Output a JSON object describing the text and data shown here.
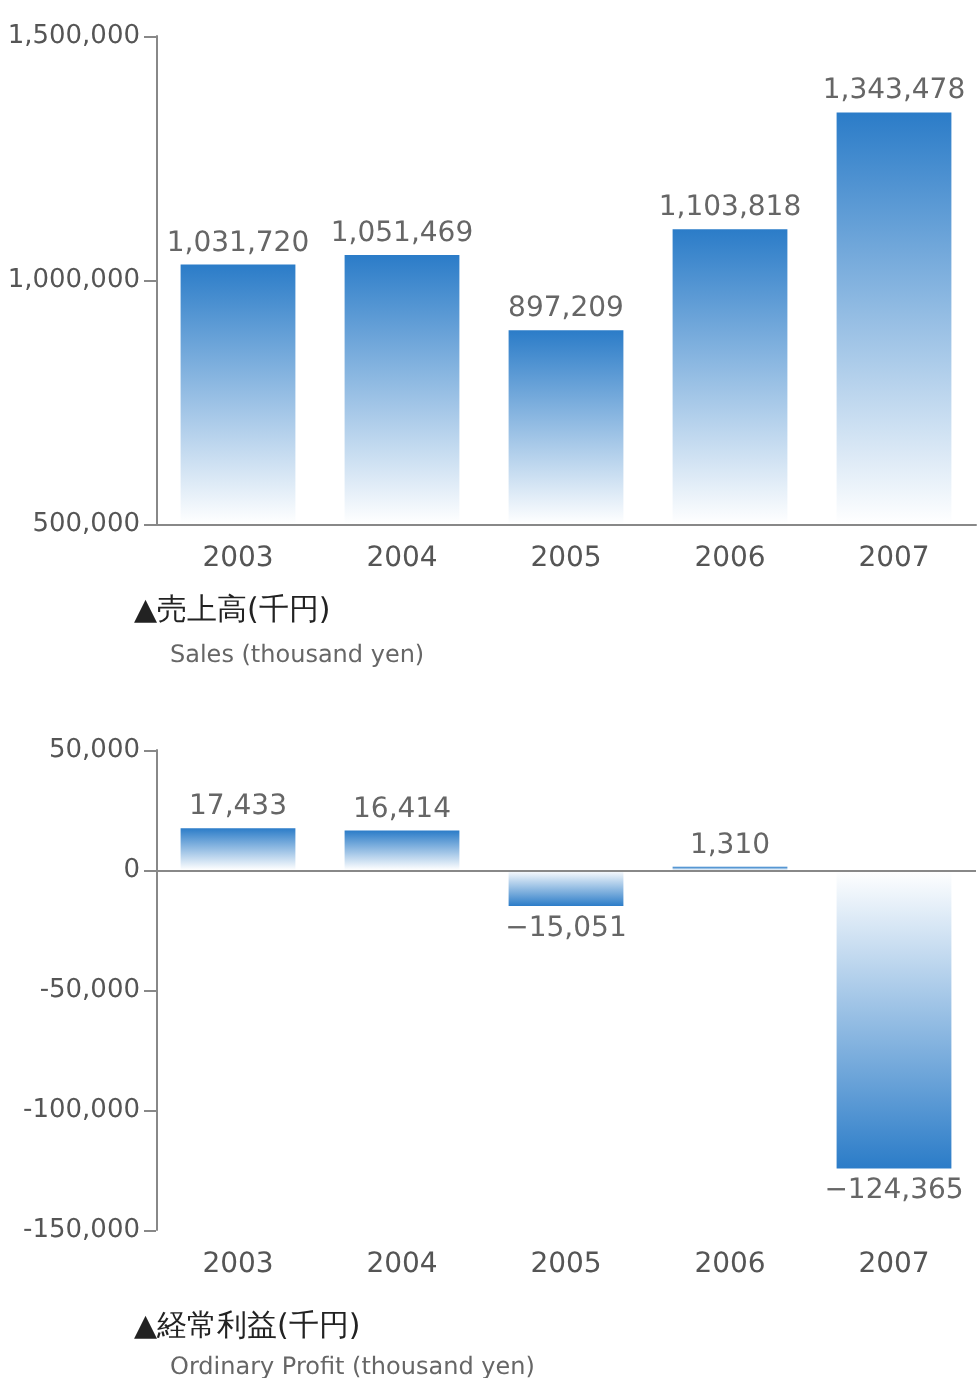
{
  "chart_data": [
    {
      "type": "bar",
      "title": "▲売上高(千円)",
      "subtitle": "Sales (thousand yen)",
      "categories": [
        "2003",
        "2004",
        "2005",
        "2006",
        "2007"
      ],
      "values": [
        1031720,
        1051469,
        897209,
        1103818,
        1343478
      ],
      "value_labels": [
        "1,031,720",
        "1,051,469",
        "897,209",
        "1,103,818",
        "1,343,478"
      ],
      "color": "#2b7cc8",
      "ylim": [
        500000,
        1500000
      ],
      "yticks": [
        {
          "value": 500000,
          "label": "500,000"
        },
        {
          "value": 1000000,
          "label": "1,000,000"
        },
        {
          "value": 1500000,
          "label": "1,500,000"
        }
      ]
    },
    {
      "type": "bar",
      "title": "▲経常利益(千円)",
      "subtitle": "Ordinary Profit (thousand yen)",
      "categories": [
        "2003",
        "2004",
        "2005",
        "2006",
        "2007"
      ],
      "values": [
        17433,
        16414,
        -15051,
        1310,
        -124365
      ],
      "value_labels": [
        "17,433",
        "16,414",
        "−15,051",
        "1,310",
        "−124,365"
      ],
      "color": "#2b7cc8",
      "ylim": [
        -150000,
        50000
      ],
      "yticks": [
        {
          "value": -150000,
          "label": "-150,000"
        },
        {
          "value": -100000,
          "label": "-100,000"
        },
        {
          "value": -50000,
          "label": "-50,000"
        },
        {
          "value": 0,
          "label": "0"
        },
        {
          "value": 50000,
          "label": "50,000"
        }
      ],
      "ref_lines": [
        {
          "axis": "y",
          "value": 0,
          "color": "#888888"
        }
      ]
    }
  ]
}
